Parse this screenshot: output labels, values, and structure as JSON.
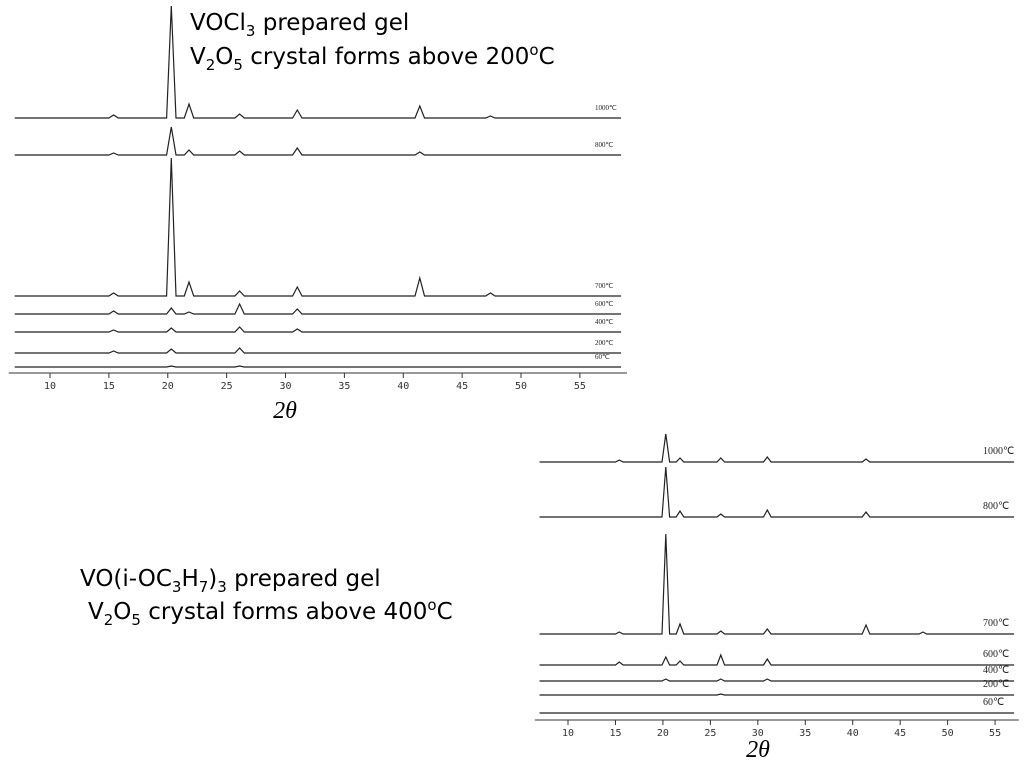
{
  "chart_data": [
    {
      "type": "line",
      "title": {
        "line1": [
          "VOCl",
          "3",
          " prepared gel"
        ],
        "line2": [
          "V",
          "2",
          "O",
          "5",
          " crystal forms above 200",
          "o",
          "C"
        ]
      },
      "x_label": "2θ",
      "x": [
        7,
        15.0,
        15.4,
        15.8,
        19.9,
        20.3,
        20.7,
        21.4,
        21.8,
        22.2,
        25.7,
        26.1,
        26.5,
        30.6,
        31.0,
        31.4,
        41.0,
        41.4,
        41.8,
        47.0,
        47.4,
        47.8,
        58.5
      ],
      "xlim": [
        6.5,
        59
      ],
      "xticks": [
        10,
        15,
        20,
        25,
        30,
        35,
        40,
        45,
        50,
        55
      ],
      "color": "#222222",
      "series": [
        {
          "name": "1000℃",
          "values": [
            0,
            0,
            3,
            0,
            0,
            112,
            0,
            0,
            14,
            0,
            0,
            4,
            0,
            0,
            8,
            0,
            0,
            12,
            0,
            0,
            2,
            0,
            0
          ]
        },
        {
          "name": "800℃",
          "values": [
            0,
            0,
            2,
            0,
            0,
            28,
            0,
            0,
            5,
            0,
            0,
            4,
            0,
            0,
            7,
            0,
            0,
            3,
            0,
            0,
            0,
            0,
            0
          ]
        },
        {
          "name": "700℃",
          "values": [
            0,
            0,
            3,
            0,
            0,
            138,
            0,
            0,
            14,
            0,
            0,
            5,
            0,
            0,
            9,
            0,
            0,
            18,
            0,
            0,
            3,
            0,
            0
          ]
        },
        {
          "name": "600℃",
          "values": [
            0,
            0,
            3,
            0,
            0,
            6,
            0,
            0,
            2,
            0,
            0,
            10,
            0,
            0,
            5,
            0,
            0,
            0,
            0,
            0,
            0,
            0,
            0
          ]
        },
        {
          "name": "400℃",
          "values": [
            0,
            0,
            2,
            0,
            0,
            4,
            0,
            0,
            0,
            0,
            0,
            5,
            0,
            0,
            3,
            0,
            0,
            0,
            0,
            0,
            0,
            0,
            0
          ]
        },
        {
          "name": "200℃",
          "values": [
            0,
            0,
            2,
            0,
            0,
            4,
            0,
            0,
            0,
            0,
            0,
            5,
            0,
            0,
            0,
            0,
            0,
            0,
            0,
            0,
            0,
            0,
            0
          ]
        },
        {
          "name": "60℃",
          "values": [
            0,
            0,
            0,
            0,
            0,
            1,
            0,
            0,
            0,
            0,
            0,
            1,
            0,
            0,
            0,
            0,
            0,
            0,
            0,
            0,
            0,
            0,
            0
          ]
        }
      ]
    },
    {
      "type": "line",
      "title": {
        "line1": [
          "VO(i-OC",
          "3",
          "H",
          "7",
          ")",
          "3",
          " prepared gel"
        ],
        "line2": [
          "V",
          "2",
          "O",
          "5",
          " crystal forms above 400",
          "o",
          "C"
        ]
      },
      "x_label": "2θ",
      "x": [
        7,
        15.0,
        15.4,
        15.8,
        19.9,
        20.3,
        20.7,
        21.4,
        21.8,
        22.2,
        25.7,
        26.1,
        26.5,
        30.6,
        31.0,
        31.4,
        41.0,
        41.4,
        41.8,
        47.0,
        47.4,
        47.8,
        57
      ],
      "xlim": [
        6.5,
        57.5
      ],
      "xticks": [
        10,
        15,
        20,
        25,
        30,
        35,
        40,
        45,
        50,
        55
      ],
      "color": "#222222",
      "series": [
        {
          "name": "1000℃",
          "values": [
            0,
            0,
            2,
            0,
            0,
            28,
            0,
            0,
            4,
            0,
            0,
            4,
            0,
            0,
            5,
            0,
            0,
            3,
            0,
            0,
            0,
            0,
            0
          ]
        },
        {
          "name": "800℃",
          "values": [
            0,
            0,
            0,
            0,
            0,
            50,
            0,
            0,
            6,
            0,
            0,
            3,
            0,
            0,
            7,
            0,
            0,
            5,
            0,
            0,
            0,
            0,
            0
          ]
        },
        {
          "name": "700℃",
          "values": [
            0,
            0,
            2,
            0,
            0,
            100,
            0,
            0,
            10,
            0,
            0,
            3,
            0,
            0,
            5,
            0,
            0,
            9,
            0,
            0,
            2,
            0,
            0
          ]
        },
        {
          "name": "600℃",
          "values": [
            0,
            0,
            3,
            0,
            0,
            8,
            0,
            0,
            4,
            0,
            0,
            10,
            0,
            0,
            6,
            0,
            0,
            0,
            0,
            0,
            0,
            0,
            0
          ]
        },
        {
          "name": "400℃",
          "values": [
            0,
            0,
            0,
            0,
            0,
            2,
            0,
            0,
            0,
            0,
            0,
            2,
            0,
            0,
            2,
            0,
            0,
            0,
            0,
            0,
            0,
            0,
            0
          ]
        },
        {
          "name": "200℃",
          "values": [
            0,
            0,
            0,
            0,
            0,
            0,
            0,
            0,
            0,
            0,
            0,
            1,
            0,
            0,
            0,
            0,
            0,
            0,
            0,
            0,
            0,
            0,
            0
          ]
        },
        {
          "name": "60℃",
          "values": [
            0,
            0,
            0,
            0,
            0,
            0,
            0,
            0,
            0,
            0,
            0,
            0,
            0,
            0,
            0,
            0,
            0,
            0,
            0,
            0,
            0,
            0,
            0
          ]
        }
      ]
    }
  ]
}
